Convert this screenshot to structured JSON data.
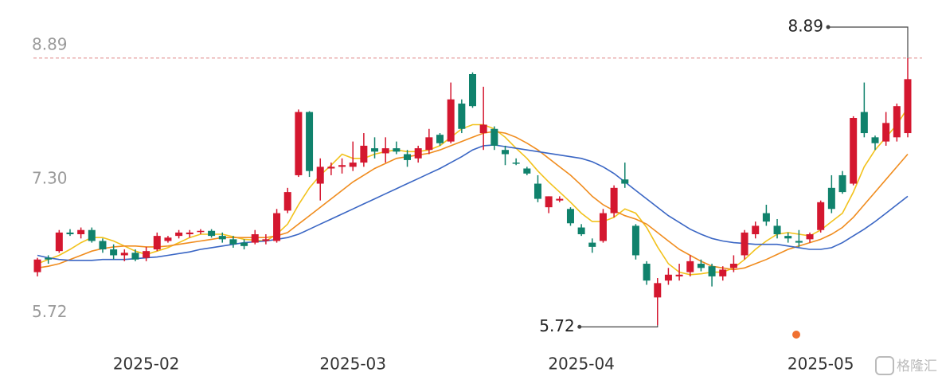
{
  "chart_data": {
    "type": "candlestick",
    "categories": [
      null,
      null,
      null,
      null,
      null,
      null,
      null,
      null,
      null,
      null,
      "2025-02",
      null,
      null,
      null,
      null,
      null,
      null,
      null,
      null,
      null,
      null,
      null,
      null,
      null,
      null,
      null,
      null,
      null,
      null,
      "2025-03",
      null,
      null,
      null,
      null,
      null,
      null,
      null,
      null,
      null,
      null,
      null,
      null,
      null,
      null,
      null,
      null,
      null,
      null,
      null,
      null,
      "2025-04",
      null,
      null,
      null,
      null,
      null,
      null,
      null,
      null,
      null,
      null,
      null,
      null,
      null,
      null,
      null,
      null,
      null,
      null,
      null,
      null,
      null,
      "2025-05",
      null,
      null,
      null,
      null,
      null,
      null,
      null,
      null
    ],
    "open": [
      6.35,
      6.52,
      6.6,
      6.82,
      6.8,
      6.85,
      6.72,
      6.62,
      6.55,
      6.58,
      6.52,
      6.62,
      6.72,
      6.78,
      6.8,
      6.84,
      6.84,
      6.78,
      6.74,
      6.7,
      6.7,
      6.72,
      6.72,
      7.08,
      7.5,
      8.25,
      7.4,
      7.58,
      7.6,
      7.6,
      7.65,
      7.82,
      7.76,
      7.82,
      7.75,
      7.7,
      7.8,
      7.98,
      7.9,
      8.35,
      8.7,
      8.0,
      8.05,
      7.8,
      7.65,
      7.58,
      7.4,
      7.12,
      7.2,
      7.1,
      6.88,
      6.7,
      6.72,
      7.05,
      7.45,
      6.9,
      6.45,
      6.05,
      6.25,
      6.3,
      6.35,
      6.45,
      6.42,
      6.3,
      6.4,
      6.55,
      6.8,
      7.05,
      6.9,
      6.78,
      6.72,
      6.74,
      6.85,
      7.35,
      7.5,
      7.4,
      8.25,
      7.95,
      7.9,
      7.95,
      8.0
    ],
    "high": [
      6.52,
      6.55,
      6.85,
      6.86,
      6.88,
      6.88,
      6.75,
      6.68,
      6.62,
      6.62,
      6.65,
      6.82,
      6.78,
      6.85,
      6.85,
      6.86,
      6.86,
      6.82,
      6.78,
      6.74,
      6.85,
      6.8,
      7.1,
      7.35,
      8.28,
      8.26,
      7.7,
      7.65,
      7.7,
      7.9,
      8.0,
      7.95,
      7.95,
      7.9,
      7.8,
      7.85,
      8.05,
      8.0,
      8.6,
      8.4,
      8.72,
      8.55,
      8.08,
      7.85,
      7.7,
      7.6,
      7.5,
      7.25,
      7.25,
      7.12,
      6.92,
      6.75,
      7.1,
      7.38,
      7.65,
      6.92,
      6.48,
      6.28,
      6.4,
      6.45,
      6.55,
      6.5,
      6.45,
      6.42,
      6.55,
      6.85,
      6.95,
      7.15,
      6.98,
      6.82,
      6.85,
      6.82,
      7.2,
      7.5,
      7.55,
      8.2,
      8.6,
      7.97,
      8.25,
      8.35,
      8.89
    ],
    "low": [
      6.3,
      6.45,
      6.58,
      6.78,
      6.75,
      6.7,
      6.58,
      6.5,
      6.48,
      6.48,
      6.48,
      6.6,
      6.7,
      6.75,
      6.76,
      6.8,
      6.76,
      6.7,
      6.64,
      6.62,
      6.68,
      6.68,
      6.7,
      7.05,
      7.48,
      7.48,
      7.2,
      7.5,
      7.52,
      7.55,
      7.6,
      7.7,
      7.65,
      7.75,
      7.6,
      7.65,
      7.75,
      7.85,
      7.88,
      8.0,
      8.3,
      7.8,
      7.8,
      7.62,
      7.62,
      7.5,
      7.18,
      7.05,
      7.18,
      6.9,
      6.78,
      6.58,
      6.7,
      7.0,
      7.35,
      6.5,
      6.2,
      5.72,
      6.2,
      6.25,
      6.3,
      6.36,
      6.18,
      6.25,
      6.35,
      6.5,
      6.75,
      6.9,
      6.75,
      6.7,
      6.65,
      6.7,
      6.82,
      7.05,
      7.28,
      7.38,
      7.95,
      7.8,
      7.85,
      7.9,
      7.95
    ],
    "close": [
      6.5,
      6.5,
      6.82,
      6.8,
      6.85,
      6.72,
      6.62,
      6.55,
      6.58,
      6.5,
      6.6,
      6.78,
      6.76,
      6.82,
      6.82,
      6.84,
      6.78,
      6.74,
      6.68,
      6.66,
      6.8,
      6.74,
      7.05,
      7.3,
      8.25,
      7.55,
      7.6,
      7.6,
      7.62,
      7.65,
      7.85,
      7.78,
      7.82,
      7.78,
      7.68,
      7.82,
      7.95,
      7.88,
      8.4,
      8.05,
      8.32,
      8.1,
      7.85,
      7.75,
      7.64,
      7.52,
      7.22,
      7.25,
      7.22,
      6.93,
      6.8,
      6.65,
      7.05,
      7.35,
      7.4,
      6.55,
      6.25,
      6.22,
      6.32,
      6.32,
      6.48,
      6.4,
      6.3,
      6.38,
      6.45,
      6.82,
      6.9,
      6.95,
      6.8,
      6.75,
      6.7,
      6.8,
      7.18,
      7.1,
      7.3,
      8.18,
      8.0,
      7.88,
      8.12,
      8.32,
      8.64
    ],
    "up_color": "#d4172f",
    "down_color": "#10826c",
    "lines": [
      {
        "color": "#f2c21c",
        "values": [
          6.45,
          6.5,
          6.55,
          6.62,
          6.7,
          6.76,
          6.76,
          6.72,
          6.66,
          6.6,
          6.56,
          6.6,
          6.64,
          6.7,
          6.76,
          6.8,
          6.8,
          6.8,
          6.77,
          6.74,
          6.73,
          6.72,
          6.8,
          6.92,
          7.15,
          7.35,
          7.5,
          7.62,
          7.75,
          7.7,
          7.7,
          7.75,
          7.78,
          7.8,
          7.78,
          7.78,
          7.8,
          7.85,
          7.95,
          8.05,
          8.1,
          8.1,
          8.05,
          7.95,
          7.82,
          7.7,
          7.55,
          7.42,
          7.3,
          7.18,
          7.05,
          6.95,
          6.95,
          7.0,
          7.1,
          7.05,
          6.88,
          6.65,
          6.45,
          6.35,
          6.32,
          6.33,
          6.35,
          6.35,
          6.4,
          6.5,
          6.62,
          6.72,
          6.8,
          6.82,
          6.8,
          6.78,
          6.85,
          6.95,
          7.05,
          7.3,
          7.6,
          7.8,
          7.95,
          8.1,
          8.3
        ]
      },
      {
        "color": "#f08c1e",
        "values": [
          6.4,
          6.42,
          6.45,
          6.5,
          6.55,
          6.6,
          6.63,
          6.65,
          6.66,
          6.66,
          6.65,
          6.65,
          6.66,
          6.68,
          6.7,
          6.72,
          6.74,
          6.76,
          6.76,
          6.76,
          6.76,
          6.76,
          6.78,
          6.82,
          6.92,
          7.02,
          7.12,
          7.22,
          7.32,
          7.42,
          7.5,
          7.58,
          7.64,
          7.7,
          7.72,
          7.74,
          7.76,
          7.8,
          7.85,
          7.9,
          7.95,
          8.0,
          8.02,
          8.0,
          7.95,
          7.88,
          7.8,
          7.7,
          7.6,
          7.5,
          7.38,
          7.25,
          7.15,
          7.08,
          7.02,
          6.98,
          6.92,
          6.82,
          6.72,
          6.62,
          6.55,
          6.48,
          6.42,
          6.4,
          6.38,
          6.4,
          6.45,
          6.5,
          6.56,
          6.62,
          6.66,
          6.7,
          6.74,
          6.8,
          6.88,
          7.0,
          7.15,
          7.3,
          7.45,
          7.6,
          7.75
        ]
      },
      {
        "color": "#3a66c4",
        "values": [
          6.55,
          6.52,
          6.5,
          6.49,
          6.49,
          6.49,
          6.5,
          6.5,
          6.5,
          6.51,
          6.52,
          6.53,
          6.55,
          6.57,
          6.59,
          6.62,
          6.64,
          6.66,
          6.68,
          6.7,
          6.71,
          6.72,
          6.74,
          6.76,
          6.8,
          6.86,
          6.92,
          6.98,
          7.04,
          7.1,
          7.16,
          7.22,
          7.28,
          7.34,
          7.4,
          7.46,
          7.52,
          7.58,
          7.65,
          7.72,
          7.8,
          7.85,
          7.86,
          7.84,
          7.82,
          7.8,
          7.78,
          7.76,
          7.74,
          7.72,
          7.7,
          7.66,
          7.6,
          7.52,
          7.42,
          7.32,
          7.22,
          7.12,
          7.02,
          6.94,
          6.86,
          6.8,
          6.75,
          6.72,
          6.7,
          6.69,
          6.68,
          6.68,
          6.68,
          6.66,
          6.64,
          6.62,
          6.62,
          6.64,
          6.7,
          6.78,
          6.86,
          6.95,
          7.05,
          7.15,
          7.25
        ]
      }
    ],
    "ylim": [
      5.42,
      9.39
    ],
    "yticks": [
      8.89,
      {
        "value": 7.3,
        "label": "7.30"
      },
      5.72
    ],
    "annotations": [
      {
        "value": 8.89,
        "label": "8.89"
      },
      {
        "value": 5.72,
        "label": "5.72"
      }
    ],
    "watermark": "格隆汇"
  }
}
